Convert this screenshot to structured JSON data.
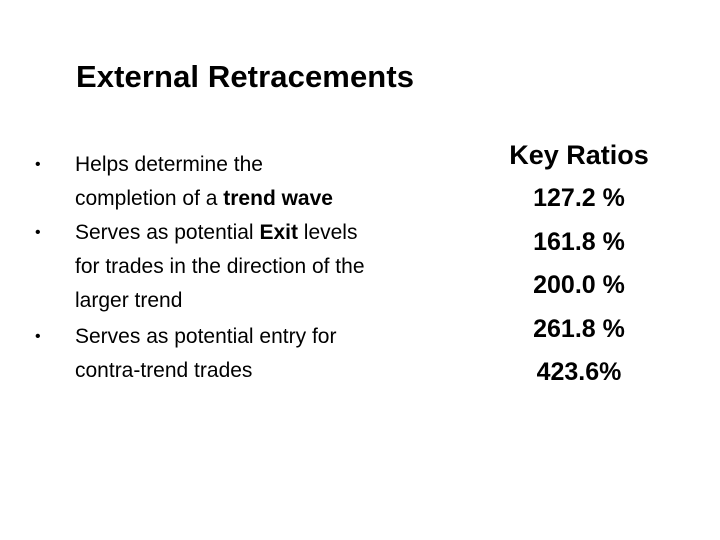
{
  "slide": {
    "title": "External Retracements",
    "bullets": [
      {
        "marker": "•",
        "segments": [
          {
            "text": "Helps determine the completion of a ",
            "bold": false
          },
          {
            "text": "trend wave",
            "bold": true
          }
        ]
      },
      {
        "marker": "•",
        "segments": [
          {
            "text": "Serves as potential ",
            "bold": false
          },
          {
            "text": "Exit",
            "bold": true
          },
          {
            "text": " levels for trades in the direction of the larger trend",
            "bold": false
          }
        ]
      },
      {
        "marker": "•",
        "segments": [
          {
            "text": "Serves as potential entry for contra-trend trades",
            "bold": false
          }
        ]
      }
    ],
    "key_ratios": {
      "heading": "Key Ratios",
      "values": [
        "127.2 %",
        "161.8 %",
        "200.0 %",
        "261.8 %",
        "423.6%"
      ]
    }
  }
}
